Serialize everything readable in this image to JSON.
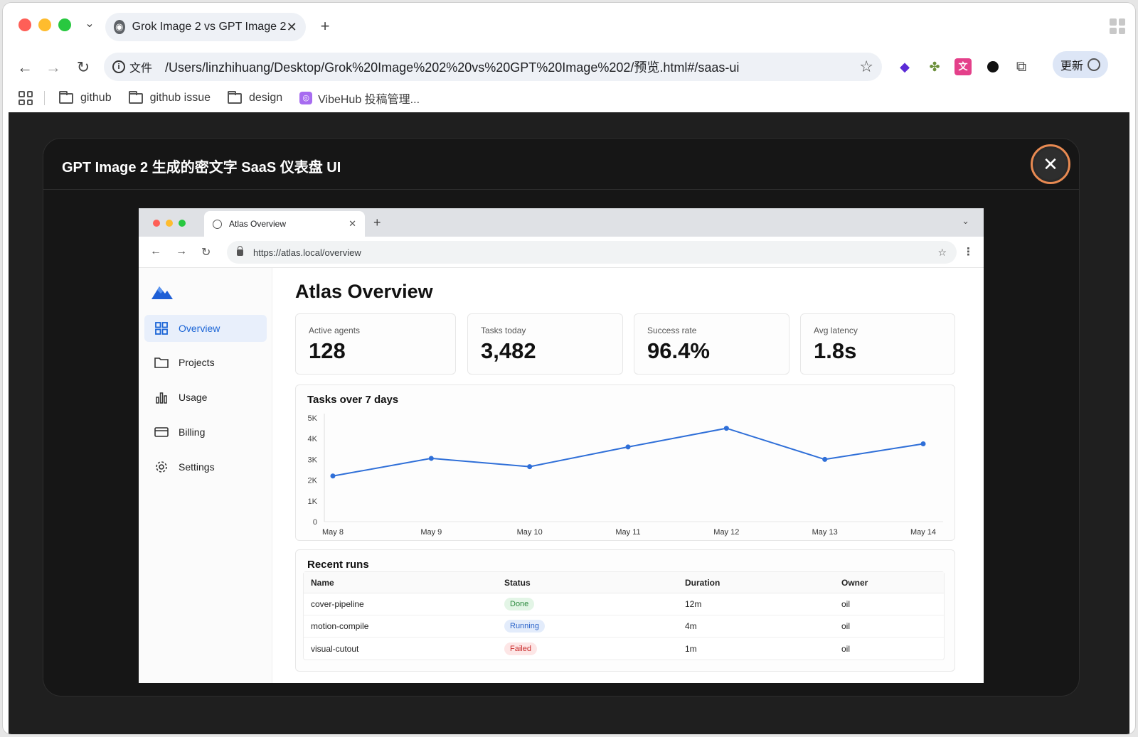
{
  "browser": {
    "tab_title": "Grok Image 2 vs GPT Image 2",
    "omnibox_label": "文件",
    "url": "/Users/linzhihuang/Desktop/Grok%20Image%202%20vs%20GPT%20Image%202/预览.html#/saas-ui",
    "update_label": "更新",
    "bookmarks": [
      "github",
      "github issue",
      "design",
      "VibeHub 投稿管理..."
    ]
  },
  "modal": {
    "title": "GPT Image 2 生成的密文字 SaaS 仪表盘 UI"
  },
  "inner_browser": {
    "tab_title": "Atlas Overview",
    "url": "https://atlas.local/overview"
  },
  "sidebar": {
    "items": [
      {
        "label": "Overview",
        "icon": "grid-icon"
      },
      {
        "label": "Projects",
        "icon": "folder-icon"
      },
      {
        "label": "Usage",
        "icon": "bar-chart-icon"
      },
      {
        "label": "Billing",
        "icon": "credit-card-icon"
      },
      {
        "label": "Settings",
        "icon": "gear-icon"
      }
    ]
  },
  "main": {
    "title": "Atlas Overview",
    "kpis": [
      {
        "label": "Active agents",
        "value": "128"
      },
      {
        "label": "Tasks today",
        "value": "3,482"
      },
      {
        "label": "Success rate",
        "value": "96.4%"
      },
      {
        "label": "Avg latency",
        "value": "1.8s"
      }
    ]
  },
  "chart_data": {
    "type": "line",
    "title": "Tasks over 7 days",
    "categories": [
      "May 8",
      "May 9",
      "May 10",
      "May 11",
      "May 12",
      "May 13",
      "May 14"
    ],
    "values": [
      2200,
      3050,
      2650,
      3600,
      4500,
      3000,
      3750
    ],
    "yticks": [
      "0",
      "1K",
      "2K",
      "3K",
      "4K",
      "5K"
    ],
    "ylim": [
      0,
      5000
    ],
    "color": "#2f6fd8",
    "grid": false
  },
  "runs": {
    "title": "Recent runs",
    "columns": [
      "Name",
      "Status",
      "Duration",
      "Owner"
    ],
    "rows": [
      {
        "name": "cover-pipeline",
        "status": "Done",
        "duration": "12m",
        "owner": "oil"
      },
      {
        "name": "motion-compile",
        "status": "Running",
        "duration": "4m",
        "owner": "oil"
      },
      {
        "name": "visual-cutout",
        "status": "Failed",
        "duration": "1m",
        "owner": "oil"
      }
    ]
  }
}
